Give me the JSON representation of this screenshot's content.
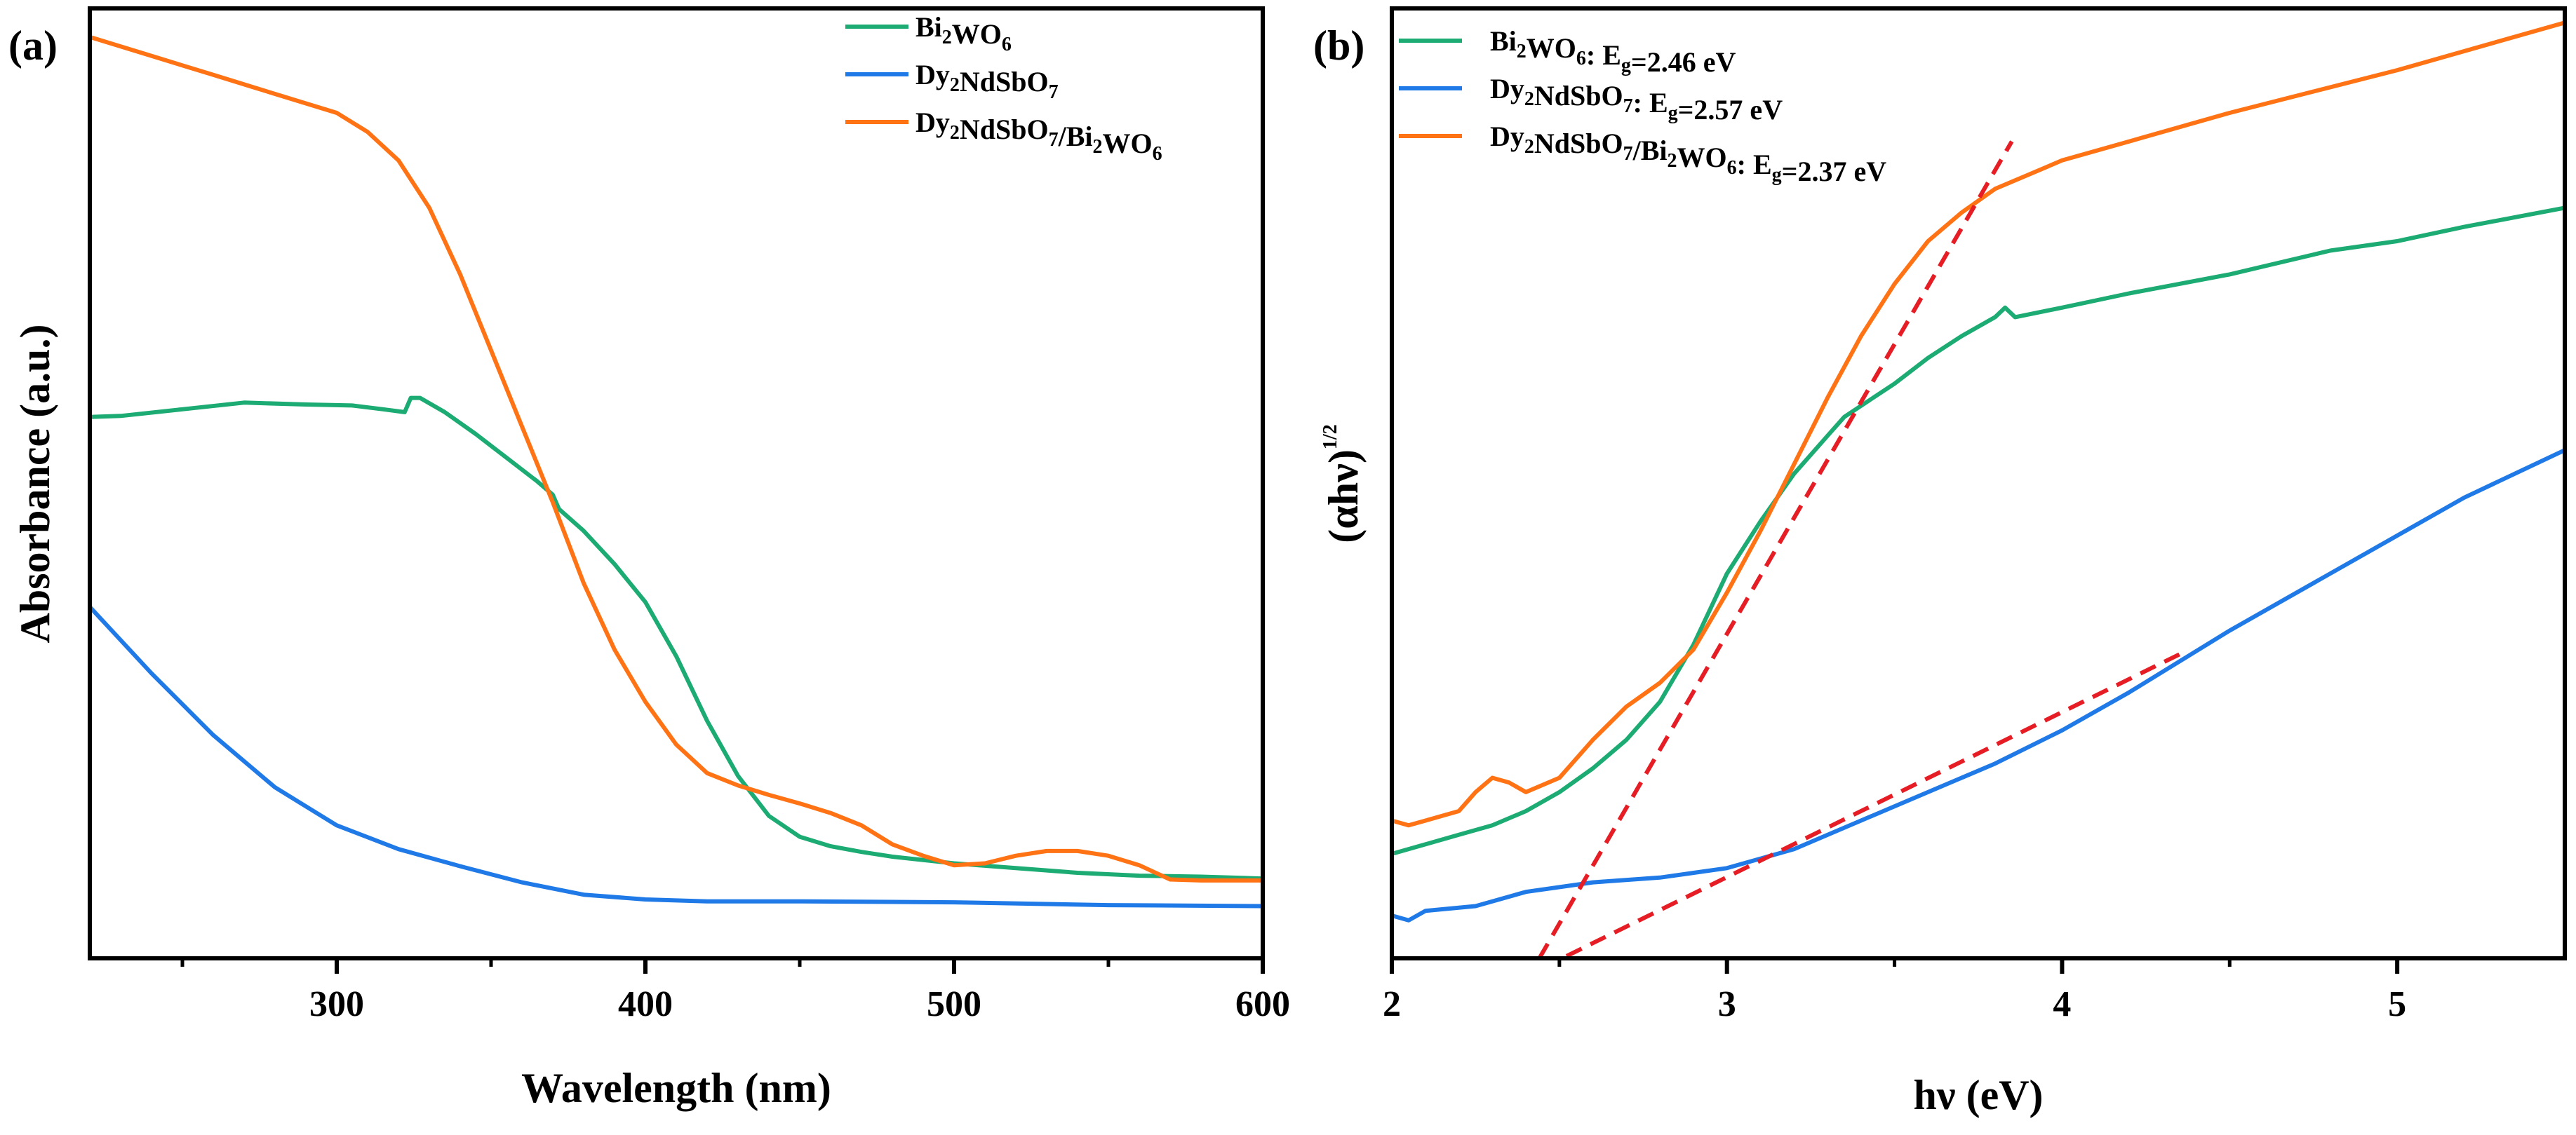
{
  "figure": {
    "colors": {
      "bi2wo6": "#1cab73",
      "dy2ndsbo7": "#1f7ae8",
      "composite": "#ff7315",
      "fit": "#e61d24",
      "axis": "#000000"
    }
  },
  "chart_data": [
    {
      "type": "line",
      "panel": "(a)",
      "xlabel": "Wavelength (nm)",
      "ylabel": "Absorbance (a.u.)",
      "xlim": [
        220,
        600
      ],
      "ylim": [
        0,
        1
      ],
      "xticks": [
        300,
        400,
        500,
        600
      ],
      "xtick_labels": [
        "300",
        "400",
        "500",
        "600"
      ],
      "y_tick_labels_shown": false,
      "legend_position": "top-right",
      "series": [
        {
          "key": "bi2wo6",
          "legend": [
            "Bi",
            "2",
            "WO",
            "6",
            "",
            ""
          ],
          "x": [
            220,
            230,
            250,
            270,
            290,
            305,
            315,
            322,
            324,
            327,
            335,
            345,
            355,
            365,
            370,
            372,
            380,
            390,
            400,
            410,
            420,
            430,
            440,
            450,
            460,
            470,
            480,
            500,
            520,
            540,
            560,
            580,
            600
          ],
          "y": [
            0.57,
            0.571,
            0.578,
            0.585,
            0.583,
            0.582,
            0.578,
            0.575,
            0.59,
            0.59,
            0.575,
            0.552,
            0.527,
            0.502,
            0.488,
            0.473,
            0.45,
            0.415,
            0.375,
            0.318,
            0.25,
            0.192,
            0.15,
            0.128,
            0.118,
            0.112,
            0.107,
            0.1,
            0.095,
            0.09,
            0.087,
            0.086,
            0.084
          ]
        },
        {
          "key": "dy2ndsbo7",
          "legend": [
            "Dy",
            "2",
            "NdSbO",
            "7",
            "",
            ""
          ],
          "x": [
            220,
            240,
            260,
            280,
            300,
            320,
            340,
            360,
            380,
            400,
            420,
            450,
            500,
            550,
            600
          ],
          "y": [
            0.37,
            0.3,
            0.235,
            0.18,
            0.14,
            0.115,
            0.097,
            0.08,
            0.067,
            0.062,
            0.06,
            0.06,
            0.059,
            0.056,
            0.055
          ]
        },
        {
          "key": "composite",
          "legend": [
            "Dy",
            "2",
            "NdSbO",
            "7",
            "/Bi",
            "2",
            "WO",
            "6"
          ],
          "x": [
            220,
            240,
            260,
            280,
            300,
            310,
            320,
            330,
            340,
            350,
            360,
            370,
            380,
            390,
            400,
            410,
            420,
            430,
            440,
            450,
            460,
            470,
            480,
            490,
            500,
            510,
            520,
            530,
            540,
            550,
            560,
            570,
            580,
            600
          ],
          "y": [
            0.97,
            0.95,
            0.93,
            0.91,
            0.89,
            0.87,
            0.84,
            0.79,
            0.72,
            0.64,
            0.56,
            0.48,
            0.395,
            0.325,
            0.27,
            0.225,
            0.195,
            0.182,
            0.172,
            0.163,
            0.153,
            0.14,
            0.12,
            0.108,
            0.098,
            0.1,
            0.108,
            0.113,
            0.113,
            0.108,
            0.098,
            0.083,
            0.082,
            0.082
          ]
        }
      ]
    },
    {
      "type": "line",
      "panel": "(b)",
      "xlabel": "hν (eV)",
      "ylabel": "(αhν)",
      "ylabel_superscript": "1/2",
      "xlim": [
        2,
        5.5
      ],
      "ylim": [
        0,
        1
      ],
      "xticks": [
        2,
        3,
        4,
        5
      ],
      "xtick_labels": [
        "2",
        "3",
        "4",
        "5"
      ],
      "y_tick_labels_shown": false,
      "legend_position": "top-left",
      "series": [
        {
          "key": "bi2wo6",
          "legend": [
            "Bi",
            "2",
            "WO",
            "6",
            ": E",
            "g",
            "=2.46 eV",
            ""
          ],
          "eg": "2.46 eV",
          "x": [
            2,
            2.1,
            2.2,
            2.3,
            2.4,
            2.5,
            2.6,
            2.7,
            2.8,
            2.9,
            3.0,
            3.1,
            3.2,
            3.3,
            3.35,
            3.5,
            3.6,
            3.7,
            3.8,
            3.83,
            3.86,
            4.0,
            4.2,
            4.5,
            4.8,
            5.0,
            5.2,
            5.5
          ],
          "y": [
            0.11,
            0.12,
            0.13,
            0.14,
            0.155,
            0.175,
            0.2,
            0.23,
            0.27,
            0.33,
            0.405,
            0.46,
            0.51,
            0.55,
            0.57,
            0.605,
            0.632,
            0.655,
            0.675,
            0.685,
            0.675,
            0.685,
            0.7,
            0.72,
            0.745,
            0.755,
            0.77,
            0.79
          ]
        },
        {
          "key": "dy2ndsbo7",
          "legend": [
            "Dy",
            "2",
            "NdSbO",
            "7",
            ": E",
            "g",
            "=2.57 eV",
            ""
          ],
          "eg": "2.57 eV",
          "x": [
            2,
            2.05,
            2.1,
            2.25,
            2.4,
            2.6,
            2.8,
            3.0,
            3.2,
            3.4,
            3.6,
            3.8,
            4.0,
            4.2,
            4.5,
            4.8,
            5.0,
            5.2,
            5.5
          ],
          "y": [
            0.045,
            0.04,
            0.05,
            0.055,
            0.07,
            0.08,
            0.085,
            0.095,
            0.115,
            0.145,
            0.175,
            0.205,
            0.24,
            0.28,
            0.345,
            0.405,
            0.445,
            0.485,
            0.535
          ]
        },
        {
          "key": "composite",
          "legend": [
            "Dy",
            "2",
            "NdSbO",
            "7",
            "/Bi",
            "2",
            "WO",
            "6",
            ": E",
            "g",
            "=2.37 eV",
            ""
          ],
          "eg": "2.37 eV",
          "x": [
            2,
            2.05,
            2.15,
            2.2,
            2.25,
            2.3,
            2.35,
            2.4,
            2.5,
            2.6,
            2.7,
            2.8,
            2.9,
            3.0,
            3.1,
            3.2,
            3.3,
            3.4,
            3.5,
            3.6,
            3.7,
            3.8,
            3.9,
            4.0,
            4.2,
            4.5,
            5.0,
            5.5
          ],
          "y": [
            0.145,
            0.14,
            0.15,
            0.155,
            0.175,
            0.19,
            0.185,
            0.175,
            0.19,
            0.23,
            0.265,
            0.29,
            0.325,
            0.385,
            0.45,
            0.52,
            0.59,
            0.655,
            0.71,
            0.755,
            0.785,
            0.81,
            0.825,
            0.84,
            0.86,
            0.89,
            0.935,
            0.985
          ]
        }
      ],
      "fit_lines": [
        {
          "x": [
            2.44,
            3.85
          ],
          "y": [
            0.0,
            0.86
          ]
        },
        {
          "x": [
            2.45,
            4.35
          ],
          "y": [
            -0.01,
            0.32
          ]
        }
      ]
    }
  ]
}
